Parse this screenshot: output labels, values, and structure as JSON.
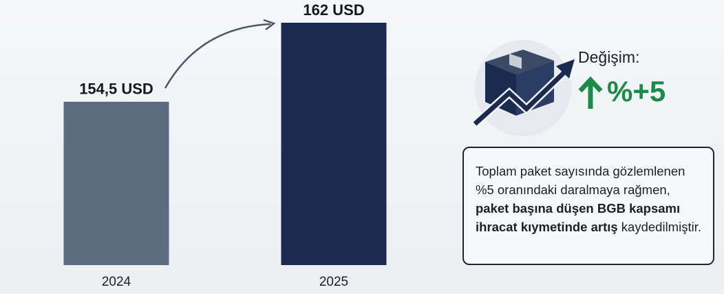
{
  "chart_data": {
    "type": "bar",
    "categories": [
      "2024",
      "2025"
    ],
    "values": [
      154.5,
      162
    ],
    "value_labels": [
      "154,5 USD",
      "162 USD"
    ],
    "colors": [
      "#5b6b80",
      "#1b2b50"
    ],
    "ylim": [
      139,
      162
    ]
  },
  "change": {
    "label": "Değişim:",
    "value": "%+5"
  },
  "note": {
    "parts": [
      "Toplam paket sayısında gözlemlenen %5 oranındaki daralmaya rağmen, ",
      "paket başına düşen BGB kapsamı ihracat kıymetinde artış",
      " kaydedilmiştir."
    ]
  }
}
